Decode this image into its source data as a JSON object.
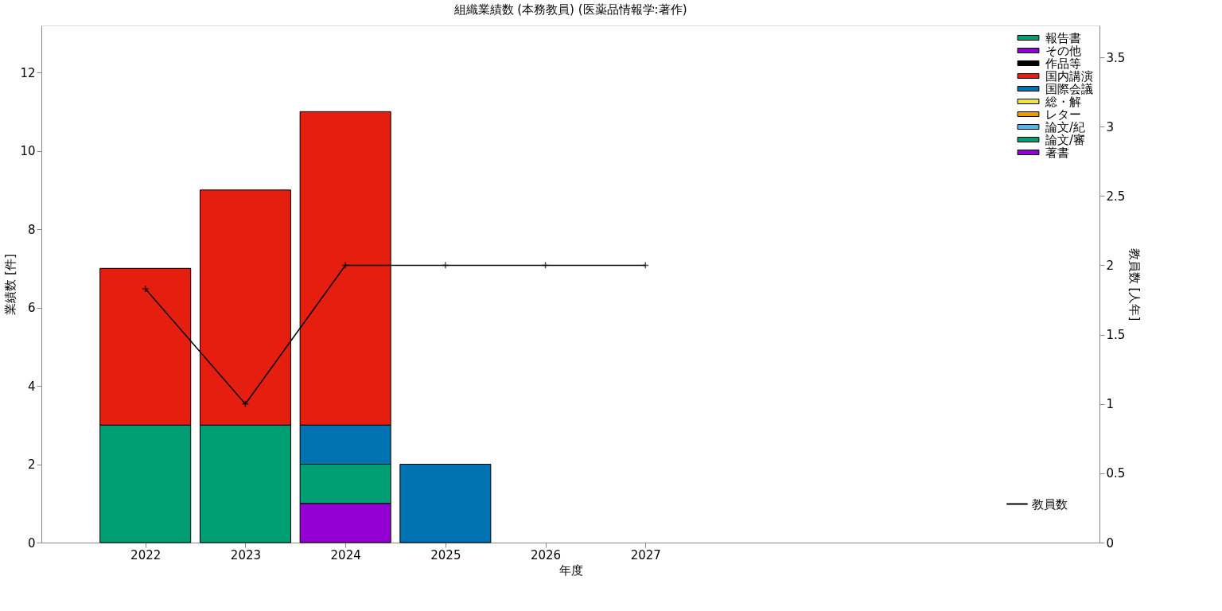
{
  "chart_data": {
    "type": "bar",
    "stacked": true,
    "title": "組織業績数 (本務教員) (医薬品情報学:著作)",
    "xlabel": "年度",
    "ylabel": "業績数 [件]",
    "y2label": "教員数 [人年]",
    "x": [
      2022,
      2023,
      2024,
      2025,
      2026,
      2027
    ],
    "xlim": [
      2021,
      2031.5
    ],
    "xticks": [
      2022,
      2023,
      2024,
      2025,
      2026,
      2027
    ],
    "ylim": [
      0,
      13.2
    ],
    "yticks": [
      0,
      2,
      4,
      6,
      8,
      10,
      12
    ],
    "y2lim": [
      0,
      3.73
    ],
    "y2ticks": [
      0,
      0.5,
      1,
      1.5,
      2,
      2.5,
      3,
      3.5
    ],
    "grid": false,
    "legend": "top right",
    "series": [
      {
        "name": "著書",
        "color": "#9400d3",
        "values": [
          null,
          null,
          1,
          null,
          null,
          null
        ]
      },
      {
        "name": "論文/審",
        "color": "#009e73",
        "values": [
          3,
          3,
          1,
          null,
          null,
          null
        ]
      },
      {
        "name": "論文/紀",
        "color": "#56b4e9",
        "values": [
          null,
          null,
          null,
          null,
          null,
          null
        ]
      },
      {
        "name": "レター",
        "color": "#e69f00",
        "values": [
          null,
          null,
          null,
          null,
          null,
          null
        ]
      },
      {
        "name": "総・解",
        "color": "#f0e442",
        "values": [
          null,
          null,
          null,
          null,
          null,
          null
        ]
      },
      {
        "name": "国際会議",
        "color": "#0072b2",
        "values": [
          null,
          null,
          1,
          2,
          null,
          null
        ]
      },
      {
        "name": "国内講演",
        "color": "#e51e10",
        "values": [
          4,
          6,
          8,
          null,
          null,
          null
        ]
      },
      {
        "name": "作品等",
        "color": "#000000",
        "values": [
          null,
          null,
          null,
          null,
          null,
          null
        ]
      },
      {
        "name": "その他",
        "color": "#9400d3",
        "values": [
          null,
          null,
          null,
          null,
          null,
          null
        ]
      },
      {
        "name": "報告書",
        "color": "#009e73",
        "values": [
          null,
          null,
          null,
          null,
          null,
          null
        ]
      },
      {
        "name": "教員数",
        "type": "line",
        "axis": "y2",
        "color": "#000000",
        "marker": "cross",
        "line_style": "solid",
        "values": [
          1.83,
          1,
          2,
          2,
          2,
          2
        ]
      }
    ]
  }
}
